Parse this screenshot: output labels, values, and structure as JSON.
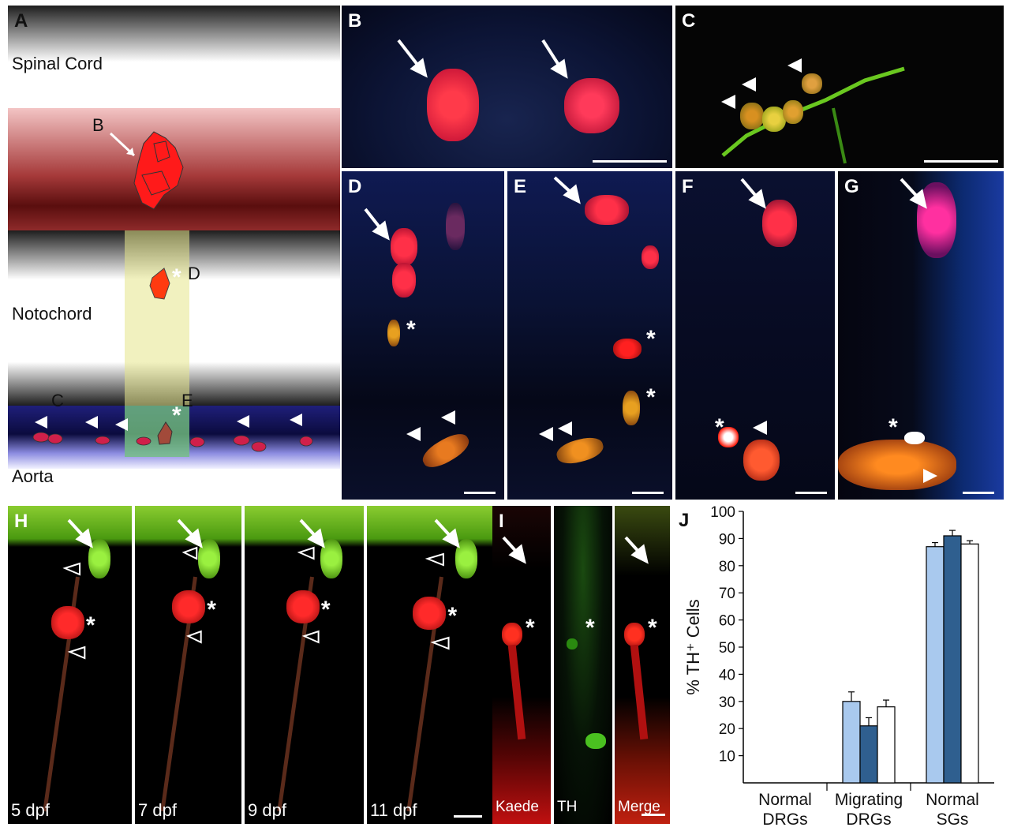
{
  "panels": {
    "a": {
      "label": "A",
      "regions": [
        "Spinal Cord",
        "Notochord",
        "Aorta"
      ],
      "markers": [
        "B",
        "D",
        "C",
        "E"
      ]
    },
    "b": {
      "label": "B"
    },
    "c": {
      "label": "C"
    },
    "d": {
      "label": "D"
    },
    "e": {
      "label": "E"
    },
    "f": {
      "label": "F"
    },
    "g": {
      "label": "G"
    },
    "h": {
      "label": "H",
      "timepoints": [
        "5 dpf",
        "7 dpf",
        "9 dpf",
        "11 dpf"
      ]
    },
    "i": {
      "label": "I",
      "channels": [
        "Kaede",
        "TH",
        "Merge"
      ]
    },
    "j": {
      "label": "J"
    }
  },
  "colors": {
    "kaede_red": "#ff2a2a",
    "th_green": "#44d21a",
    "nuclear_blue": "#2438a8",
    "bar_light": "#a9c9ee",
    "bar_dark": "#2f5f8f",
    "bar_white": "#ffffff"
  },
  "chart_data": {
    "type": "bar",
    "ylabel": "% TH⁺ Cells",
    "ylim": [
      0,
      100
    ],
    "yticks": [
      10,
      20,
      30,
      40,
      50,
      60,
      70,
      80,
      90,
      100
    ],
    "categories": [
      "Normal DRGs",
      "Migrating DRGs",
      "Normal SGs"
    ],
    "category_lines": [
      [
        "Normal",
        "DRGs"
      ],
      [
        "Migrating",
        "DRGs"
      ],
      [
        "Normal",
        "SGs"
      ]
    ],
    "series": [
      {
        "values": [
          0,
          30,
          87
        ],
        "errors": [
          0,
          3.5,
          1.5
        ],
        "color": "#a9c9ee"
      },
      {
        "values": [
          0,
          21,
          91
        ],
        "errors": [
          0,
          3,
          2
        ],
        "color": "#2f5f8f"
      },
      {
        "values": [
          0,
          28,
          88
        ],
        "errors": [
          0,
          2.5,
          1.2
        ],
        "color": "#ffffff"
      }
    ]
  }
}
